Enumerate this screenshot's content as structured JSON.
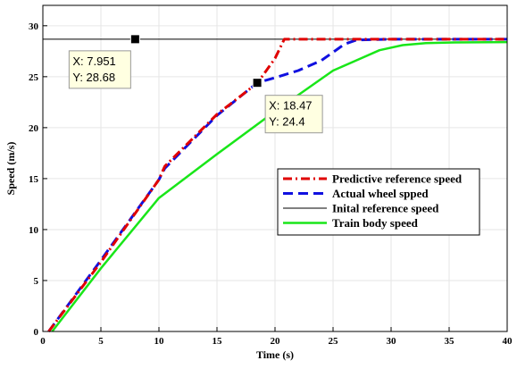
{
  "chart_data": {
    "type": "line",
    "xlabel": "Time (s)",
    "ylabel": "Speed (m/s)",
    "xlim": [
      0,
      40
    ],
    "ylim": [
      0,
      32
    ],
    "xticks": [
      "0",
      "5",
      "10",
      "15",
      "20",
      "25",
      "30",
      "35",
      "40"
    ],
    "yticks": [
      "0",
      "5",
      "10",
      "15",
      "20",
      "25",
      "30"
    ],
    "grid": true,
    "legend_position": "center-right",
    "series": [
      {
        "name": "Predictive reference speed",
        "color": "#e00000",
        "style": "dash-dot",
        "x": [
          0.5,
          5,
          10,
          10.5,
          15,
          18.5,
          19,
          20,
          20.8,
          25,
          30,
          35,
          40
        ],
        "y": [
          0,
          6.8,
          14.9,
          16.2,
          21.3,
          24.4,
          25.2,
          26.8,
          28.68,
          28.68,
          28.68,
          28.68,
          28.68
        ]
      },
      {
        "name": "Actual wheel spped",
        "color": "#1010e0",
        "style": "dashed",
        "x": [
          0.5,
          5,
          10,
          10.5,
          15,
          18.47,
          20,
          22,
          24,
          26,
          27,
          30,
          35,
          40
        ],
        "y": [
          0,
          7,
          14.9,
          16,
          21.2,
          24.4,
          24.9,
          25.6,
          26.6,
          28.2,
          28.6,
          28.68,
          28.68,
          28.68
        ]
      },
      {
        "name": "Inital reference speed",
        "color": "#000000",
        "style": "solid-thin",
        "x": [
          0,
          40
        ],
        "y": [
          28.68,
          28.68
        ]
      },
      {
        "name": "Train body speed",
        "color": "#19e619",
        "style": "solid",
        "x": [
          0.8,
          5,
          10,
          15,
          20,
          25,
          27,
          29,
          31,
          33,
          35,
          40
        ],
        "y": [
          0,
          6.2,
          13.1,
          17.4,
          21.6,
          25.6,
          26.6,
          27.6,
          28.1,
          28.3,
          28.35,
          28.4
        ]
      }
    ],
    "datatips": [
      {
        "x": 7.951,
        "y": 28.68,
        "line1": "X: 7.951",
        "line2": "Y: 28.68"
      },
      {
        "x": 18.47,
        "y": 24.4,
        "line1": "X: 18.47",
        "line2": "Y: 24.4"
      }
    ]
  },
  "colors": {
    "axis": "#000000",
    "grid": "#e6e6e6",
    "tip_bg": "#ffffe1",
    "tip_border": "#999999"
  }
}
